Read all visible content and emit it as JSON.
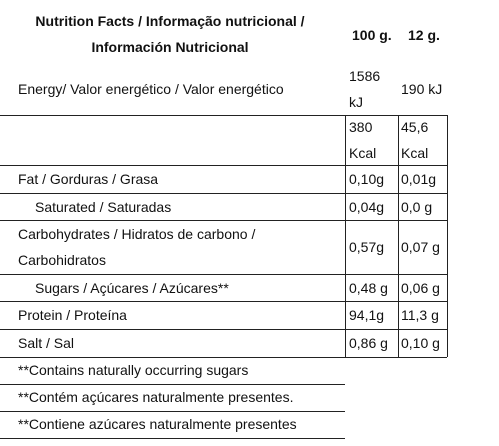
{
  "header": {
    "title": "Nutrition Facts / Informação nutricional / Información Nutricional",
    "columns": [
      "100 g.",
      "12 g."
    ]
  },
  "table": {
    "rows": [
      [
        "Energy/ Valor energético / Valor energético",
        "1586 kJ",
        "190 kJ"
      ],
      [
        null,
        "380 Kcal",
        "45,6 Kcal"
      ],
      [
        "Fat / Gorduras / Grasa",
        "0,10g",
        "0,01g"
      ],
      [
        "Saturated / Saturadas",
        "0,04g",
        "0,0 g"
      ],
      [
        "Carbohydrates / Hidratos de carbono / Carbohidratos",
        "0,57g",
        "0,07 g"
      ],
      [
        "Sugars / Açúcares / Azúcares**",
        "0,48 g",
        "0,06 g"
      ],
      [
        "Protein / Proteína",
        "94,1g",
        "11,3 g"
      ],
      [
        "Salt / Sal",
        "0,86 g",
        "0,10 g"
      ]
    ]
  },
  "footnotes": [
    "**Contains naturally occurring sugars",
    "**Contém açúcares naturalmente presentes.",
    "**Contiene azúcares naturalmente presentes"
  ]
}
